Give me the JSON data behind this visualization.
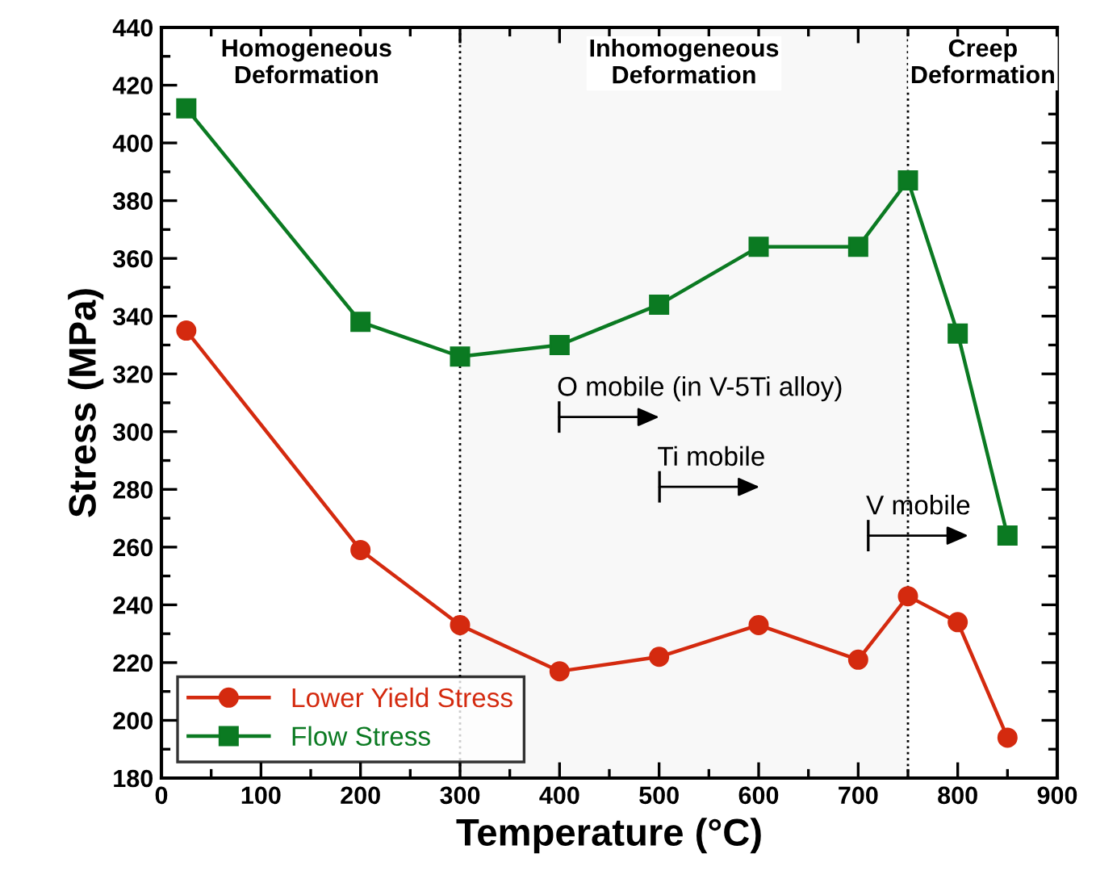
{
  "chart_data": {
    "type": "line",
    "xlabel": "Temperature (°C)",
    "ylabel": "Stress (MPa)",
    "x": [
      25,
      200,
      300,
      400,
      500,
      600,
      700,
      750,
      800,
      850
    ],
    "series": [
      {
        "name": "Lower Yield Stress",
        "color": "#d42a0f",
        "marker": "circle",
        "values": [
          335,
          259,
          233,
          217,
          222,
          233,
          221,
          243,
          234,
          194
        ]
      },
      {
        "name": "Flow Stress",
        "color": "#0b7a22",
        "marker": "square",
        "values": [
          412,
          338,
          326,
          330,
          344,
          364,
          364,
          387,
          334,
          264
        ]
      }
    ],
    "xlim": [
      0,
      900
    ],
    "xticks": [
      0,
      100,
      200,
      300,
      400,
      500,
      600,
      700,
      800,
      900
    ],
    "ylim": [
      180,
      440
    ],
    "yticks": [
      180,
      200,
      220,
      240,
      260,
      280,
      300,
      320,
      340,
      360,
      380,
      400,
      420,
      440
    ],
    "bands": [
      {
        "axis": "x",
        "from": 300,
        "to": 750,
        "label": "Inhomogeneous\nDeformation",
        "color": "#f8f8f8"
      }
    ],
    "ref_lines": [
      {
        "axis": "x",
        "value": 300,
        "color": "#000000",
        "line_style": "dotted"
      },
      {
        "axis": "x",
        "value": 750,
        "color": "#000000",
        "line_style": "dotted"
      }
    ],
    "annotations": [
      "Homogeneous\nDeformation",
      "Creep\nDeformation",
      "O mobile (in V-5Ti alloy)",
      "Ti mobile",
      "V mobile"
    ],
    "grid": false,
    "legend": "bottom left"
  }
}
